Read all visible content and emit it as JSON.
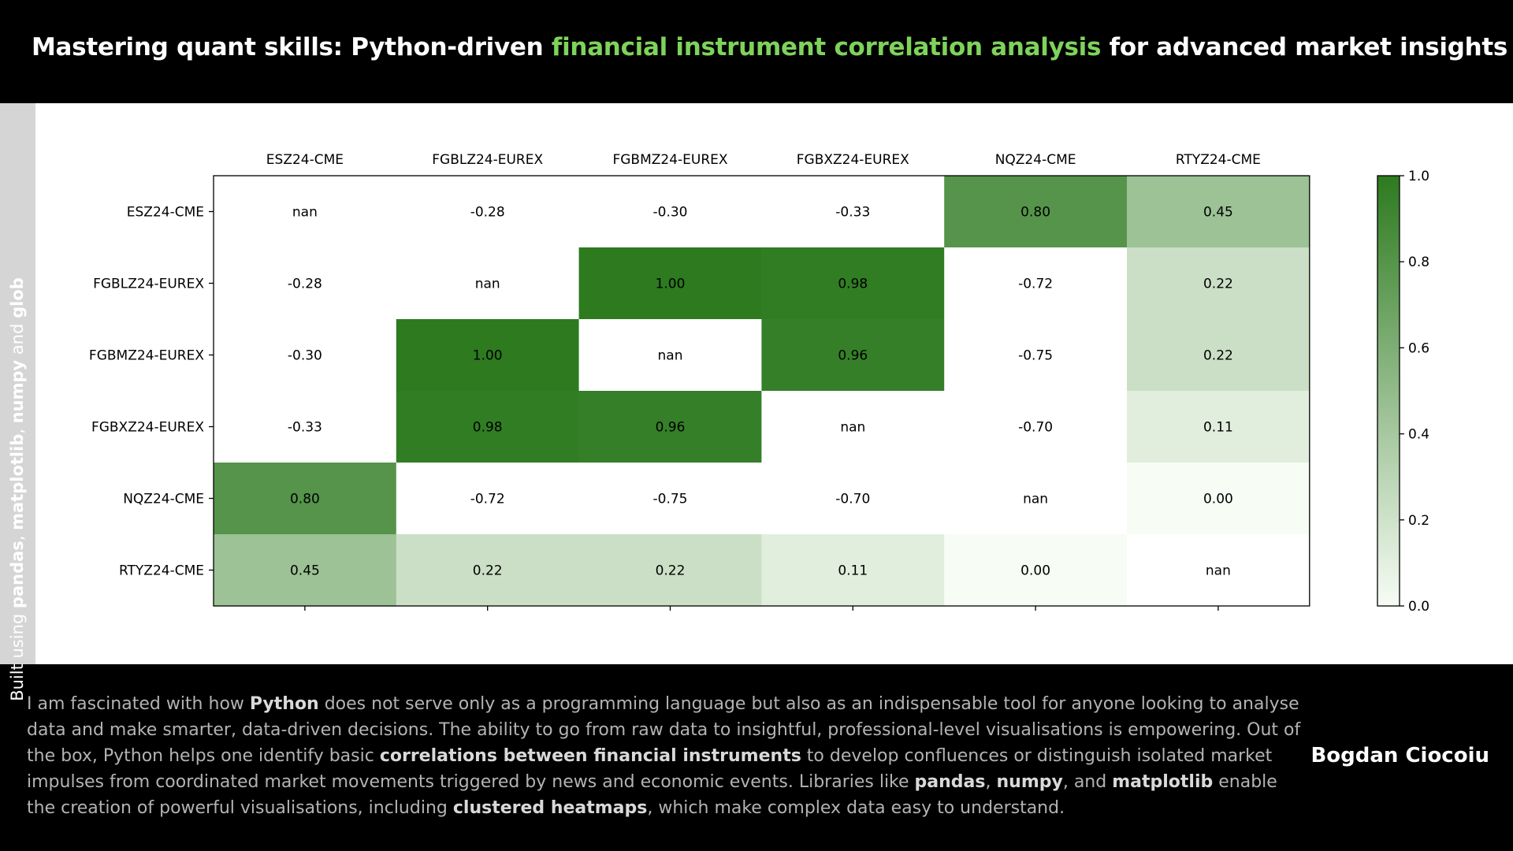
{
  "header": {
    "title_pre": "Mastering quant skills: Python-driven ",
    "title_highlight": "financial instrument correlation analysis",
    "title_post": " for advanced market insights",
    "highlight_color": "#7ed35b"
  },
  "sidebar": {
    "p1": "Built using ",
    "b1": "pandas",
    "p2": ", ",
    "b2": "matplotlib",
    "p3": ", ",
    "b3": "numpy",
    "p4": " and ",
    "b4": "glob"
  },
  "footer": {
    "t1": "I am fascinated with how ",
    "b1": "Python",
    "t2": " does not serve only as a programming language but also as an indispensable tool for anyone looking to analyse data and make smarter, data-driven decisions. The ability to go from raw data to insightful, professional-level visualisations is empowering. Out of the box, Python helps one identify basic ",
    "b2": "correlations between financial instruments",
    "t3": " to develop confluences or distinguish isolated market impulses from coordinated market movements triggered by news and economic events. Libraries like ",
    "b3": "pandas",
    "t4": ", ",
    "b4": "numpy",
    "t5": ", and ",
    "b5": "matplotlib",
    "t6": " enable the creation of powerful visualisations, including ",
    "b6": "clustered heatmaps",
    "t7": ", which make complex data easy to understand.",
    "author": "Bogdan Ciocoiu"
  },
  "chart_data": {
    "type": "heatmap",
    "labels": [
      "ESZ24-CME",
      "FGBLZ24-EUREX",
      "FGBMZ24-EUREX",
      "FGBXZ24-EUREX",
      "NQZ24-CME",
      "RTYZ24-CME"
    ],
    "values": [
      [
        null,
        -0.28,
        -0.3,
        -0.33,
        0.8,
        0.45
      ],
      [
        -0.28,
        null,
        1.0,
        0.98,
        -0.72,
        0.22
      ],
      [
        -0.3,
        1.0,
        null,
        0.96,
        -0.75,
        0.22
      ],
      [
        -0.33,
        0.98,
        0.96,
        null,
        -0.7,
        0.11
      ],
      [
        0.8,
        -0.72,
        -0.75,
        -0.7,
        null,
        0.0
      ],
      [
        0.45,
        0.22,
        0.22,
        0.11,
        0.0,
        null
      ]
    ],
    "null_label": "nan",
    "colorbar": {
      "range": [
        0.0,
        1.0
      ],
      "ticks": [
        "0.0",
        "0.2",
        "0.4",
        "0.6",
        "0.8",
        "1.0"
      ]
    },
    "colormap": "Greens",
    "colormap_low": "#f7fcf5",
    "colormap_high": "#2d7a1f",
    "x_ticks_position": "top"
  }
}
